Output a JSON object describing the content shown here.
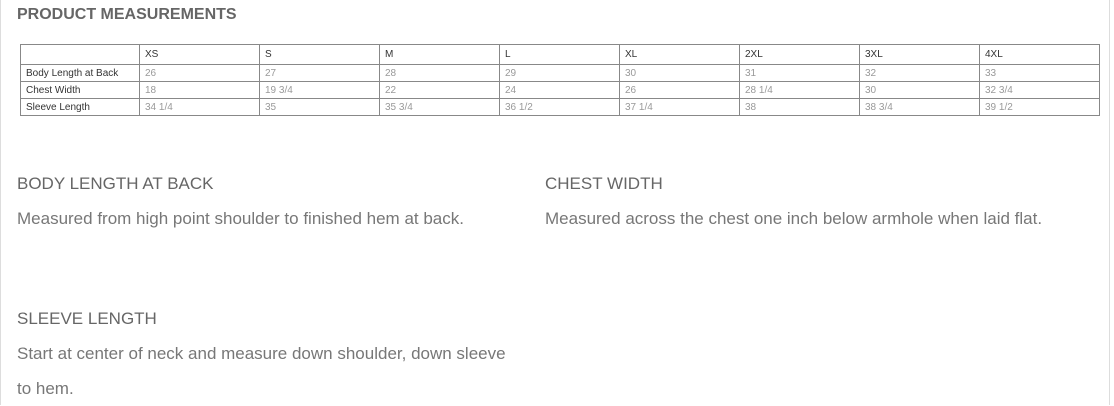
{
  "header": {
    "title": "PRODUCT MEASUREMENTS"
  },
  "table": {
    "columns": [
      "XS",
      "S",
      "M",
      "L",
      "XL",
      "2XL",
      "3XL",
      "4XL"
    ],
    "rows": [
      {
        "label": "Body Length at Back",
        "values": [
          "26",
          "27",
          "28",
          "29",
          "30",
          "31",
          "32",
          "33"
        ]
      },
      {
        "label": "Chest Width",
        "values": [
          "18",
          "19 3/4",
          "22",
          "24",
          "26",
          "28 1/4",
          "30",
          "32 3/4"
        ]
      },
      {
        "label": "Sleeve Length",
        "values": [
          "34 1/4",
          "35",
          "35 3/4",
          "36 1/2",
          "37 1/4",
          "38",
          "38 3/4",
          "39 1/2"
        ]
      }
    ]
  },
  "sections": [
    {
      "heading": "BODY LENGTH AT BACK",
      "text": "Measured from high point shoulder to finished hem at back."
    },
    {
      "heading": "CHEST WIDTH",
      "text": "Measured across the chest one inch below armhole when laid flat."
    },
    {
      "heading": "SLEEVE LENGTH",
      "text": "Start at center of neck and measure down shoulder, down sleeve to hem."
    }
  ]
}
